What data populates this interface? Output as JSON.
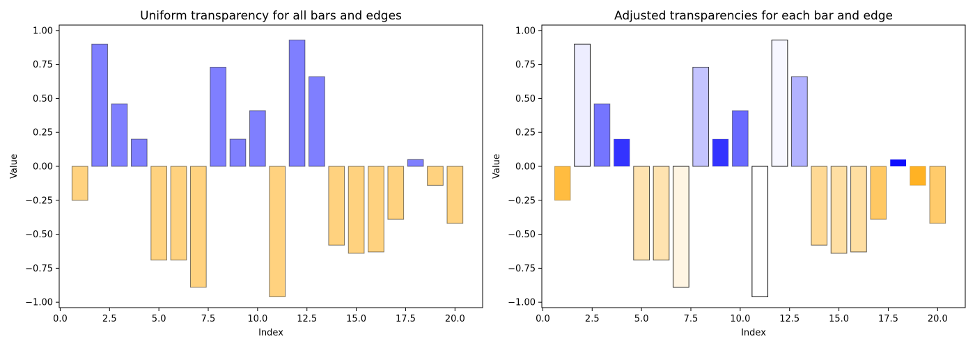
{
  "colors": {
    "positive": "#0000ff",
    "negative": "#ffa500",
    "edge": "#000000"
  },
  "chart_data": [
    {
      "type": "bar",
      "title": "Uniform transparency for all bars and edges",
      "xlabel": "Index",
      "ylabel": "Value",
      "xlim": [
        -0.05,
        21.4
      ],
      "ylim": [
        -1.04,
        1.04
      ],
      "xticks": [
        0.0,
        2.5,
        5.0,
        7.5,
        10.0,
        12.5,
        15.0,
        17.5,
        20.0
      ],
      "xtick_labels": [
        "0.0",
        "2.5",
        "5.0",
        "7.5",
        "10.0",
        "12.5",
        "15.0",
        "17.5",
        "20.0"
      ],
      "yticks": [
        -1.0,
        -0.75,
        -0.5,
        -0.25,
        0.0,
        0.25,
        0.5,
        0.75,
        1.0
      ],
      "ytick_labels": [
        "−1.00",
        "−0.75",
        "−0.50",
        "−0.25",
        "0.00",
        "0.25",
        "0.50",
        "0.75",
        "1.00"
      ],
      "x": [
        1,
        2,
        3,
        4,
        5,
        6,
        7,
        8,
        9,
        10,
        11,
        12,
        13,
        14,
        15,
        16,
        17,
        18,
        19,
        20
      ],
      "values": [
        -0.25,
        0.9,
        0.46,
        0.2,
        -0.69,
        -0.69,
        -0.89,
        0.73,
        0.2,
        0.41,
        -0.96,
        0.93,
        0.66,
        -0.58,
        -0.64,
        -0.63,
        -0.39,
        0.05,
        -0.14,
        -0.42
      ],
      "bar_alpha": [
        0.5,
        0.5,
        0.5,
        0.5,
        0.5,
        0.5,
        0.5,
        0.5,
        0.5,
        0.5,
        0.5,
        0.5,
        0.5,
        0.5,
        0.5,
        0.5,
        0.5,
        0.5,
        0.5,
        0.5
      ],
      "edge_alpha": [
        0.5,
        0.5,
        0.5,
        0.5,
        0.5,
        0.5,
        0.5,
        0.5,
        0.5,
        0.5,
        0.5,
        0.5,
        0.5,
        0.5,
        0.5,
        0.5,
        0.5,
        0.5,
        0.5,
        0.5
      ],
      "grid": false
    },
    {
      "type": "bar",
      "title": "Adjusted transparencies for each bar and edge",
      "xlabel": "Index",
      "ylabel": "Value",
      "xlim": [
        -0.05,
        21.4
      ],
      "ylim": [
        -1.04,
        1.04
      ],
      "xticks": [
        0.0,
        2.5,
        5.0,
        7.5,
        10.0,
        12.5,
        15.0,
        17.5,
        20.0
      ],
      "xtick_labels": [
        "0.0",
        "2.5",
        "5.0",
        "7.5",
        "10.0",
        "12.5",
        "15.0",
        "17.5",
        "20.0"
      ],
      "yticks": [
        -1.0,
        -0.75,
        -0.5,
        -0.25,
        0.0,
        0.25,
        0.5,
        0.75,
        1.0
      ],
      "ytick_labels": [
        "−1.00",
        "−0.75",
        "−0.50",
        "−0.25",
        "0.00",
        "0.25",
        "0.50",
        "0.75",
        "1.00"
      ],
      "x": [
        1,
        2,
        3,
        4,
        5,
        6,
        7,
        8,
        9,
        10,
        11,
        12,
        13,
        14,
        15,
        16,
        17,
        18,
        19,
        20
      ],
      "values": [
        -0.25,
        0.9,
        0.46,
        0.2,
        -0.69,
        -0.69,
        -0.89,
        0.73,
        0.2,
        0.41,
        -0.96,
        0.93,
        0.66,
        -0.58,
        -0.64,
        -0.63,
        -0.39,
        0.05,
        -0.14,
        -0.42
      ],
      "bar_alpha": [
        0.75,
        0.07,
        0.54,
        0.8,
        0.31,
        0.31,
        0.11,
        0.23,
        0.8,
        0.59,
        0.0,
        0.03,
        0.3,
        0.42,
        0.36,
        0.37,
        0.61,
        0.95,
        0.86,
        0.58
      ],
      "edge_alpha": [
        0.25,
        0.93,
        0.46,
        0.2,
        0.69,
        0.69,
        0.89,
        0.73,
        0.2,
        0.41,
        0.96,
        0.93,
        0.66,
        0.58,
        0.64,
        0.63,
        0.39,
        0.05,
        0.14,
        0.42
      ],
      "grid": false
    }
  ]
}
